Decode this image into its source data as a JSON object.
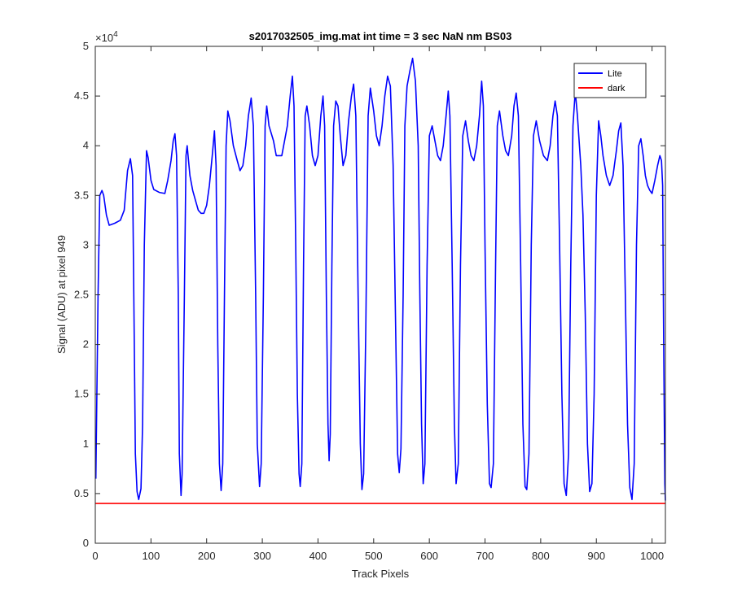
{
  "chart_data": {
    "type": "line",
    "title": "s2017032505_img.mat int time = 3 sec  NaN nm BS03",
    "xlabel": "Track Pixels",
    "ylabel": "Signal (ADU) at pixel 949",
    "xlim": [
      0,
      1024
    ],
    "ylim": [
      0,
      50000
    ],
    "xticks": [
      0,
      100,
      200,
      300,
      400,
      500,
      600,
      700,
      800,
      900,
      1000
    ],
    "xtick_labels": [
      "0",
      "100",
      "200",
      "300",
      "400",
      "500",
      "600",
      "700",
      "800",
      "900",
      "1000"
    ],
    "yticks": [
      0,
      5000,
      10000,
      15000,
      20000,
      25000,
      30000,
      35000,
      40000,
      45000,
      50000
    ],
    "ytick_labels": [
      "0",
      "0.5",
      "1",
      "1.5",
      "2",
      "2.5",
      "3",
      "3.5",
      "4",
      "4.5",
      "5"
    ],
    "y_exponent_label": "×10",
    "y_exponent_power": "4",
    "grid": false,
    "legend": "top-right",
    "series": [
      {
        "name": "Lite",
        "color": "#0000ff",
        "points": [
          [
            1,
            6500
          ],
          [
            5,
            25000
          ],
          [
            8,
            35000
          ],
          [
            12,
            35500
          ],
          [
            15,
            35000
          ],
          [
            20,
            33000
          ],
          [
            25,
            32000
          ],
          [
            35,
            32200
          ],
          [
            45,
            32500
          ],
          [
            52,
            33500
          ],
          [
            58,
            37500
          ],
          [
            63,
            38700
          ],
          [
            67,
            37000
          ],
          [
            70,
            20000
          ],
          [
            72,
            9000
          ],
          [
            75,
            5200
          ],
          [
            78,
            4400
          ],
          [
            82,
            5500
          ],
          [
            85,
            12000
          ],
          [
            88,
            30000
          ],
          [
            92,
            39500
          ],
          [
            95,
            38800
          ],
          [
            100,
            36500
          ],
          [
            105,
            35600
          ],
          [
            115,
            35300
          ],
          [
            125,
            35200
          ],
          [
            130,
            36500
          ],
          [
            136,
            38500
          ],
          [
            140,
            40500
          ],
          [
            143,
            41200
          ],
          [
            146,
            39000
          ],
          [
            149,
            25000
          ],
          [
            151,
            9000
          ],
          [
            154,
            4800
          ],
          [
            156,
            7000
          ],
          [
            160,
            25000
          ],
          [
            163,
            39000
          ],
          [
            165,
            40000
          ],
          [
            170,
            37000
          ],
          [
            175,
            35500
          ],
          [
            180,
            34500
          ],
          [
            185,
            33500
          ],
          [
            190,
            33200
          ],
          [
            195,
            33200
          ],
          [
            200,
            34000
          ],
          [
            205,
            36000
          ],
          [
            210,
            39000
          ],
          [
            214,
            41500
          ],
          [
            217,
            38000
          ],
          [
            220,
            20000
          ],
          [
            223,
            8000
          ],
          [
            226,
            5300
          ],
          [
            229,
            8000
          ],
          [
            232,
            25000
          ],
          [
            235,
            40000
          ],
          [
            238,
            43500
          ],
          [
            242,
            42500
          ],
          [
            248,
            40000
          ],
          [
            255,
            38500
          ],
          [
            260,
            37500
          ],
          [
            265,
            38000
          ],
          [
            270,
            40000
          ],
          [
            275,
            43000
          ],
          [
            280,
            44800
          ],
          [
            284,
            42000
          ],
          [
            288,
            25000
          ],
          [
            291,
            10000
          ],
          [
            295,
            5700
          ],
          [
            298,
            8000
          ],
          [
            302,
            25000
          ],
          [
            305,
            42000
          ],
          [
            308,
            44000
          ],
          [
            312,
            42000
          ],
          [
            320,
            40500
          ],
          [
            325,
            39000
          ],
          [
            335,
            39000
          ],
          [
            345,
            42000
          ],
          [
            350,
            45000
          ],
          [
            354,
            47000
          ],
          [
            357,
            44000
          ],
          [
            360,
            30000
          ],
          [
            363,
            15000
          ],
          [
            366,
            7000
          ],
          [
            368,
            5700
          ],
          [
            371,
            8000
          ],
          [
            374,
            28000
          ],
          [
            377,
            43000
          ],
          [
            380,
            44000
          ],
          [
            385,
            42000
          ],
          [
            390,
            39000
          ],
          [
            395,
            38000
          ],
          [
            400,
            39000
          ],
          [
            405,
            43000
          ],
          [
            409,
            45000
          ],
          [
            412,
            42000
          ],
          [
            415,
            25000
          ],
          [
            418,
            12000
          ],
          [
            420,
            8300
          ],
          [
            422,
            11000
          ],
          [
            425,
            28000
          ],
          [
            428,
            42000
          ],
          [
            432,
            44500
          ],
          [
            436,
            44000
          ],
          [
            440,
            41000
          ],
          [
            445,
            38000
          ],
          [
            450,
            39000
          ],
          [
            455,
            42500
          ],
          [
            460,
            45000
          ],
          [
            464,
            46200
          ],
          [
            468,
            43000
          ],
          [
            472,
            25000
          ],
          [
            476,
            10000
          ],
          [
            479,
            5400
          ],
          [
            482,
            7000
          ],
          [
            486,
            22000
          ],
          [
            490,
            43000
          ],
          [
            494,
            45800
          ],
          [
            500,
            43500
          ],
          [
            505,
            41000
          ],
          [
            510,
            40000
          ],
          [
            515,
            42000
          ],
          [
            520,
            45000
          ],
          [
            525,
            47000
          ],
          [
            530,
            46000
          ],
          [
            535,
            38000
          ],
          [
            540,
            20000
          ],
          [
            543,
            9000
          ],
          [
            546,
            7100
          ],
          [
            549,
            9500
          ],
          [
            553,
            25000
          ],
          [
            556,
            42000
          ],
          [
            560,
            46000
          ],
          [
            565,
            47500
          ],
          [
            570,
            48800
          ],
          [
            575,
            46500
          ],
          [
            580,
            40000
          ],
          [
            583,
            25000
          ],
          [
            586,
            12000
          ],
          [
            589,
            6000
          ],
          [
            592,
            8000
          ],
          [
            596,
            28000
          ],
          [
            600,
            41000
          ],
          [
            605,
            42000
          ],
          [
            610,
            40500
          ],
          [
            615,
            39000
          ],
          [
            620,
            38500
          ],
          [
            625,
            40000
          ],
          [
            630,
            43000
          ],
          [
            634,
            45500
          ],
          [
            637,
            43000
          ],
          [
            641,
            28000
          ],
          [
            645,
            12000
          ],
          [
            648,
            6000
          ],
          [
            652,
            8000
          ],
          [
            656,
            28000
          ],
          [
            660,
            41000
          ],
          [
            665,
            42500
          ],
          [
            670,
            40500
          ],
          [
            675,
            39000
          ],
          [
            680,
            38500
          ],
          [
            685,
            40000
          ],
          [
            690,
            43000
          ],
          [
            694,
            46500
          ],
          [
            697,
            44000
          ],
          [
            700,
            30000
          ],
          [
            704,
            14000
          ],
          [
            708,
            6000
          ],
          [
            711,
            5600
          ],
          [
            715,
            8000
          ],
          [
            719,
            28000
          ],
          [
            722,
            42000
          ],
          [
            726,
            43500
          ],
          [
            732,
            41000
          ],
          [
            737,
            39500
          ],
          [
            742,
            39000
          ],
          [
            748,
            41000
          ],
          [
            752,
            44000
          ],
          [
            756,
            45300
          ],
          [
            760,
            43000
          ],
          [
            764,
            28000
          ],
          [
            768,
            12000
          ],
          [
            772,
            5700
          ],
          [
            775,
            5400
          ],
          [
            779,
            9000
          ],
          [
            783,
            30000
          ],
          [
            787,
            41000
          ],
          [
            792,
            42500
          ],
          [
            798,
            40500
          ],
          [
            805,
            39000
          ],
          [
            812,
            38500
          ],
          [
            817,
            40000
          ],
          [
            822,
            43000
          ],
          [
            826,
            44500
          ],
          [
            830,
            43000
          ],
          [
            834,
            30000
          ],
          [
            838,
            15000
          ],
          [
            842,
            6000
          ],
          [
            846,
            4800
          ],
          [
            850,
            9000
          ],
          [
            854,
            28000
          ],
          [
            858,
            42000
          ],
          [
            862,
            45500
          ],
          [
            866,
            43000
          ],
          [
            872,
            38000
          ],
          [
            876,
            33000
          ],
          [
            880,
            23000
          ],
          [
            884,
            10000
          ],
          [
            888,
            5200
          ],
          [
            892,
            6000
          ],
          [
            896,
            15000
          ],
          [
            900,
            35000
          ],
          [
            904,
            42500
          ],
          [
            908,
            41000
          ],
          [
            912,
            39000
          ],
          [
            918,
            37000
          ],
          [
            924,
            36000
          ],
          [
            930,
            37000
          ],
          [
            936,
            39500
          ],
          [
            940,
            41500
          ],
          [
            944,
            42300
          ],
          [
            948,
            38000
          ],
          [
            952,
            25000
          ],
          [
            956,
            12000
          ],
          [
            960,
            5600
          ],
          [
            964,
            4400
          ],
          [
            968,
            8000
          ],
          [
            972,
            30000
          ],
          [
            976,
            40000
          ],
          [
            980,
            40700
          ],
          [
            984,
            39000
          ],
          [
            988,
            37000
          ],
          [
            992,
            36000
          ],
          [
            996,
            35500
          ],
          [
            1000,
            35200
          ],
          [
            1005,
            36500
          ],
          [
            1010,
            38000
          ],
          [
            1014,
            39000
          ],
          [
            1017,
            38500
          ],
          [
            1019,
            36000
          ],
          [
            1021,
            20000
          ],
          [
            1023,
            6000
          ],
          [
            1024,
            4300
          ]
        ]
      },
      {
        "name": "dark",
        "color": "#ff0000",
        "points": [
          [
            0,
            4000
          ],
          [
            1024,
            4000
          ]
        ]
      }
    ]
  }
}
